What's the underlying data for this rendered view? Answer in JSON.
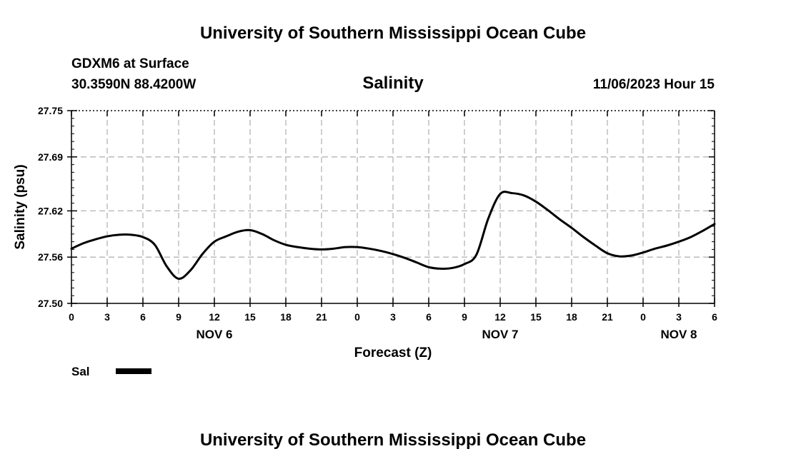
{
  "header": {
    "title": "University of Southern Mississippi Ocean Cube",
    "station": "GDXM6 at Surface",
    "location": "30.3590N  88.4200W",
    "variable": "Salinity",
    "valid_time": "11/06/2023 Hour 15"
  },
  "footer": {
    "title": "University of Southern Mississippi Ocean Cube"
  },
  "legend": {
    "label": "Sal"
  },
  "chart_data": {
    "type": "line",
    "title": "Salinity",
    "xlabel": "Forecast (Z)",
    "ylabel": "Salinity (psu)",
    "ylim": [
      27.5,
      27.75
    ],
    "yticks": [
      "27.50",
      "27.56",
      "27.62",
      "27.69",
      "27.75"
    ],
    "xlim": [
      0,
      54
    ],
    "xticks": [
      0,
      3,
      6,
      9,
      12,
      15,
      18,
      21,
      24,
      27,
      30,
      33,
      36,
      39,
      42,
      45,
      48,
      51,
      54
    ],
    "xtick_labels": [
      "0",
      "3",
      "6",
      "9",
      "12",
      "15",
      "18",
      "21",
      "0",
      "3",
      "6",
      "9",
      "12",
      "15",
      "18",
      "21",
      "0",
      "3",
      "6"
    ],
    "day_labels": [
      {
        "x": 12,
        "label": "NOV 6"
      },
      {
        "x": 36,
        "label": "NOV 7"
      },
      {
        "x": 51,
        "label": "NOV 8"
      }
    ],
    "grid": true,
    "legend_position": "bottom-left",
    "series": [
      {
        "name": "Sal",
        "color": "#000000",
        "x": [
          0,
          1,
          2,
          3,
          4,
          5,
          6,
          7,
          8,
          9,
          10,
          11,
          12,
          13,
          14,
          15,
          16,
          17,
          18,
          19,
          20,
          21,
          22,
          23,
          24,
          25,
          26,
          27,
          28,
          29,
          30,
          31,
          32,
          33,
          34,
          35,
          36,
          37,
          38,
          39,
          40,
          41,
          42,
          43,
          44,
          45,
          46,
          47,
          48,
          49,
          50,
          51,
          52,
          53,
          54
        ],
        "y": [
          27.571,
          27.578,
          27.583,
          27.587,
          27.589,
          27.589,
          27.586,
          27.576,
          27.548,
          27.532,
          27.543,
          27.564,
          27.58,
          27.587,
          27.593,
          27.595,
          27.59,
          27.582,
          27.576,
          27.573,
          27.571,
          27.57,
          27.571,
          27.573,
          27.573,
          27.571,
          27.568,
          27.564,
          27.559,
          27.553,
          27.547,
          27.545,
          27.546,
          27.551,
          27.563,
          27.61,
          27.642,
          27.643,
          27.64,
          27.632,
          27.621,
          27.609,
          27.598,
          27.586,
          27.575,
          27.565,
          27.561,
          27.562,
          27.566,
          27.571,
          27.575,
          27.58,
          27.586,
          27.594,
          27.603
        ]
      }
    ]
  }
}
